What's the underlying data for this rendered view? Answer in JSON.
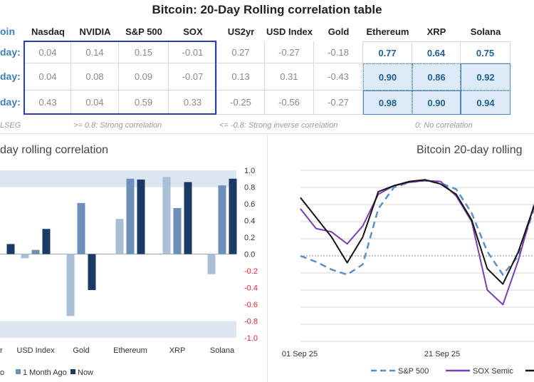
{
  "table": {
    "title": "Bitcoin: 20-Day Rolling correlation table",
    "corner_label": "oin",
    "columns": [
      "Nasdaq",
      "NVIDIA",
      "S&P 500",
      "SOX",
      "US2yr",
      "USD Index",
      "Gold",
      "Ethereum",
      "XRP",
      "Solana"
    ],
    "rows": [
      {
        "label": "day:",
        "values": [
          "0.04",
          "0.14",
          "0.15",
          "-0.01",
          "0.27",
          "-0.27",
          "-0.18",
          "0.77",
          "0.64",
          "0.75"
        ]
      },
      {
        "label": "day:",
        "values": [
          "0.04",
          "0.08",
          "0.09",
          "-0.07",
          "0.13",
          "0.31",
          "-0.43",
          "0.90",
          "0.86",
          "0.92"
        ]
      },
      {
        "label": "day:",
        "values": [
          "0.43",
          "0.04",
          "0.59",
          "0.33",
          "-0.25",
          "-0.56",
          "-0.27",
          "0.98",
          "0.90",
          "0.94"
        ]
      }
    ],
    "highlight_color": "#dcebf7",
    "box_color": "#2a3fb0"
  },
  "notes": {
    "source": "LSEG",
    "strong": ">= 0.8:  Strong correlation",
    "inverse": "<= -0.8:  Strong inverse correlation",
    "none": "0:  No correlation"
  },
  "chart_data": [
    {
      "type": "bar",
      "title": "day rolling correlation",
      "categories": [
        "r",
        "USD Index",
        "Gold",
        "Ethereum",
        "XRP",
        "Solana"
      ],
      "series": [
        {
          "name": "o",
          "color": "#a9bfd6",
          "values": [
            null,
            -0.05,
            -0.74,
            0.42,
            0.92,
            -0.24
          ]
        },
        {
          "name": "1 Month Ago",
          "color": "#6d8fb8",
          "values": [
            null,
            0.05,
            0.61,
            0.9,
            0.55,
            0.82
          ]
        },
        {
          "name": "Now",
          "color": "#1c3a66",
          "values": [
            0.12,
            0.3,
            -0.43,
            0.89,
            0.86,
            0.9
          ]
        }
      ],
      "ylim": [
        -1.0,
        1.0
      ],
      "yticks": [
        "1.0",
        "0.8",
        "0.6",
        "0.4",
        "0.2",
        "0.0",
        "-0.2",
        "-0.4",
        "-0.6",
        "-0.8",
        "-1.0"
      ],
      "band_threshold": 0.8
    },
    {
      "type": "line",
      "title": "Bitcoin 20-day rolling",
      "x_tick_labels": [
        "01 Sep 25",
        "21 Sep 25"
      ],
      "ylim": [
        -1.0,
        1.0
      ],
      "series": [
        {
          "name": "S&P 500",
          "color": "#5b8fc7",
          "dash": true,
          "values": [
            0.0,
            -0.07,
            -0.16,
            -0.22,
            -0.1,
            0.55,
            0.8,
            0.86,
            0.88,
            0.85,
            0.78,
            0.5,
            0.05,
            -0.22,
            0.0,
            0.55
          ]
        },
        {
          "name": "SOX Semic",
          "color": "#7b3fb0",
          "dash": false,
          "values": [
            0.55,
            0.32,
            0.28,
            0.14,
            0.35,
            0.72,
            0.82,
            0.86,
            0.88,
            0.87,
            0.7,
            0.4,
            -0.4,
            -0.57,
            -0.05,
            0.6
          ]
        },
        {
          "name": "",
          "color": "#111111",
          "dash": false,
          "values": [
            0.68,
            0.45,
            0.22,
            -0.08,
            0.22,
            0.75,
            0.82,
            0.87,
            0.89,
            0.84,
            0.72,
            0.42,
            -0.15,
            -0.33,
            0.05,
            0.58
          ]
        }
      ]
    }
  ]
}
